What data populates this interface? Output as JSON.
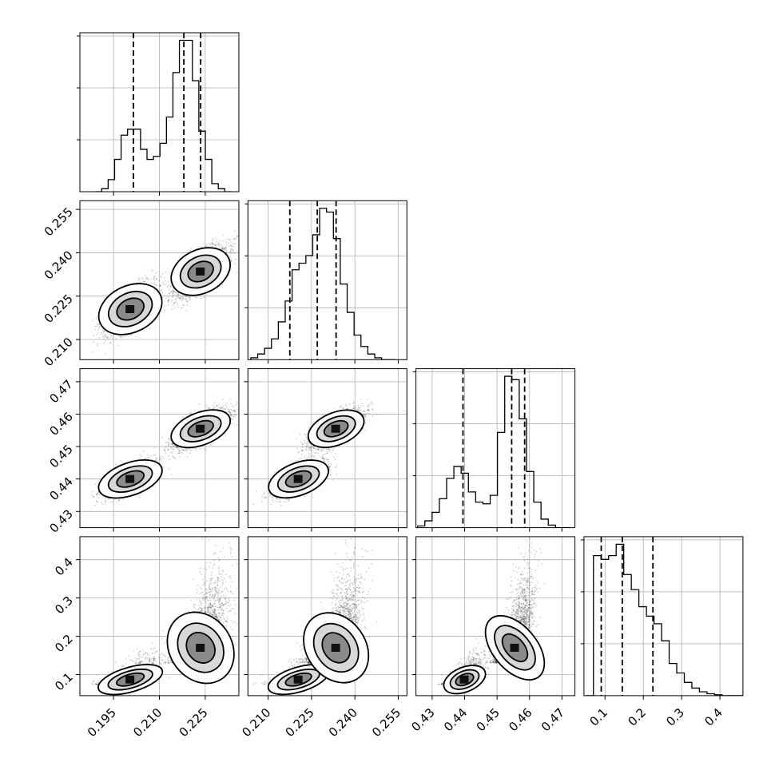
{
  "chart_data": {
    "type": "corner",
    "title": "",
    "parameters": [
      {
        "name": "",
        "range": [
          0.184,
          0.236
        ],
        "ticks": [
          0.195,
          0.21,
          0.225
        ],
        "tick_labels": [
          "0.195",
          "0.210",
          "0.225"
        ],
        "quantiles": [
          0.2015,
          0.218,
          0.2235
        ]
      },
      {
        "name": "",
        "range": [
          0.203,
          0.258
        ],
        "ticks": [
          0.21,
          0.225,
          0.24,
          0.255
        ],
        "tick_labels": [
          "0.210",
          "0.225",
          "0.240",
          "0.255"
        ],
        "quantiles": [
          0.2175,
          0.227,
          0.2335
        ]
      },
      {
        "name": "",
        "range": [
          0.425,
          0.474
        ],
        "ticks": [
          0.43,
          0.44,
          0.45,
          0.46,
          0.47
        ],
        "tick_labels": [
          "0.43",
          "0.44",
          "0.45",
          "0.46",
          "0.47"
        ],
        "quantiles": [
          0.4395,
          0.4545,
          0.4585
        ]
      },
      {
        "name": "",
        "range": [
          0.045,
          0.46
        ],
        "ticks": [
          0.1,
          0.2,
          0.3,
          0.4
        ],
        "tick_labels": [
          "0.1",
          "0.2",
          "0.3",
          "0.4"
        ],
        "quantiles": [
          0.09,
          0.145,
          0.225
        ]
      }
    ],
    "histograms": [
      {
        "edges_range": [
          0.189,
          0.2335
        ],
        "counts": [
          0,
          3,
          12,
          32,
          56,
          62,
          62,
          42,
          32,
          35,
          48,
          74,
          118,
          150,
          150,
          110,
          60,
          32,
          8,
          3,
          0
        ]
      },
      {
        "edges_range": [
          0.204,
          0.254
        ],
        "counts": [
          2,
          6,
          12,
          22,
          40,
          62,
          95,
          102,
          110,
          132,
          160,
          156,
          128,
          80,
          50,
          26,
          14,
          6,
          2,
          0,
          0
        ]
      },
      {
        "edges_range": [
          0.4255,
          0.4725
        ],
        "counts": [
          2,
          8,
          18,
          34,
          58,
          72,
          64,
          42,
          30,
          28,
          38,
          112,
          178,
          174,
          128,
          66,
          30,
          10,
          3,
          0,
          0
        ]
      },
      {
        "edges_range": [
          0.05,
          0.465
        ],
        "counts": [
          0,
          148,
          144,
          148,
          160,
          128,
          112,
          94,
          84,
          76,
          58,
          34,
          24,
          14,
          8,
          4,
          2,
          1,
          0,
          0,
          0
        ]
      }
    ],
    "modes": [
      {
        "mu": [
          0.2005,
          0.2205,
          0.44,
          0.087
        ],
        "sd": [
          0.0045,
          0.0045,
          0.0028,
          0.018
        ],
        "weight": 0.35
      },
      {
        "mu": [
          0.2235,
          0.2335,
          0.4555,
          0.17
        ],
        "sd": [
          0.0042,
          0.0042,
          0.0028,
          0.055
        ],
        "weight": 0.65
      }
    ],
    "grid": true,
    "line_style": "solid histogram steps, dashed quantile lines",
    "colors": {
      "points": "#000000",
      "contour": "#000000",
      "grid": "#b0b0b0"
    }
  }
}
